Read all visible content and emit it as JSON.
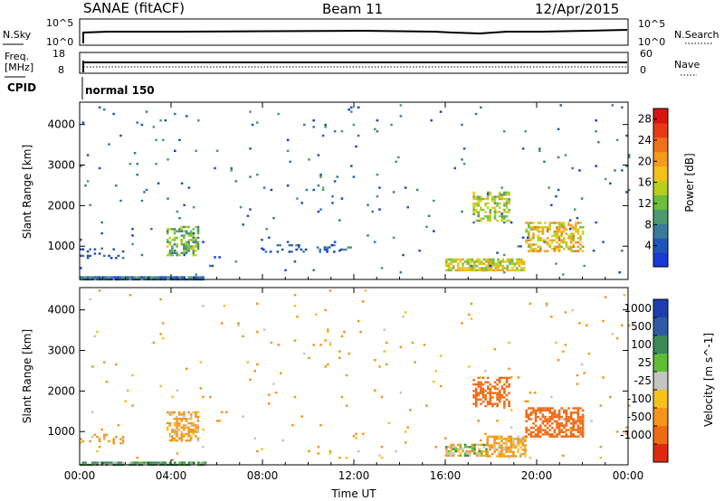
{
  "header": {
    "station": "SANAE (fitACF)",
    "beam": "Beam 11",
    "date": "12/Apr/2015"
  },
  "summary": {
    "nsky_label": "N.Sky",
    "nsearch_label": "N.Search",
    "nsky_ticks": [
      "10^5",
      "10^0"
    ],
    "nsearch_ticks": [
      "10^5",
      "10^0"
    ],
    "freq_label_1": "Freq.",
    "freq_label_2": "[MHz]",
    "freq_ticks": [
      "18",
      "8"
    ],
    "nave_label": "Nave",
    "nave_ticks": [
      "60",
      "0"
    ],
    "cpid_label": "CPID",
    "cpid_value": "normal 150"
  },
  "colors": {
    "power": [
      "#1a3ad6",
      "#1f55b8",
      "#3a7a9a",
      "#4d9a6e",
      "#6bbf3a",
      "#b9cf1a",
      "#f2c21a",
      "#f59a1a",
      "#f0701a",
      "#e83a14",
      "#d8150f"
    ],
    "velocity": [
      "#1d3fae",
      "#2f5aa5",
      "#3b8a5a",
      "#5fbe36",
      "#c4c4c0",
      "#f5c21a",
      "#f5951a",
      "#ef6a14",
      "#e02a10"
    ]
  },
  "chart_data": [
    {
      "type": "heatmap",
      "parameter": "power",
      "ylabel": "Slant Range [km]",
      "xlabel": "",
      "x_ticks": [
        "00:00",
        "04:00",
        "08:00",
        "12:00",
        "16:00",
        "20:00",
        "00:00"
      ],
      "x_hours": [
        0,
        4,
        8,
        12,
        16,
        20,
        24
      ],
      "y_ticks": [
        1000,
        2000,
        3000,
        4000
      ],
      "ylim": [
        180,
        4550
      ],
      "colorbar": {
        "label": "Power [dB]",
        "ticks": [
          4,
          8,
          12,
          16,
          20,
          24,
          28
        ],
        "range": [
          0,
          30
        ]
      },
      "patches": [
        {
          "t": [
            0.0,
            5.5
          ],
          "r": [
            180,
            260
          ],
          "value": 6,
          "density": 0.9
        },
        {
          "t": [
            3.8,
            5.2
          ],
          "r": [
            800,
            1500
          ],
          "value": 12,
          "density": 0.55
        },
        {
          "t": [
            17.2,
            18.8
          ],
          "r": [
            1650,
            2350
          ],
          "value": 14,
          "density": 0.5
        },
        {
          "t": [
            16.0,
            19.5
          ],
          "r": [
            400,
            700
          ],
          "value": 16,
          "density": 0.75
        },
        {
          "t": [
            19.5,
            22.0
          ],
          "r": [
            900,
            1600
          ],
          "value": 18,
          "density": 0.55
        },
        {
          "t": [
            0.0,
            2.0
          ],
          "r": [
            700,
            950
          ],
          "value": 5,
          "density": 0.25
        },
        {
          "t": [
            8.0,
            12.0
          ],
          "r": [
            850,
            1050
          ],
          "value": 5,
          "density": 0.2
        },
        {
          "t": [
            0.0,
            24.0
          ],
          "r": [
            300,
            4500
          ],
          "value": 6,
          "density": 0.012
        }
      ]
    },
    {
      "type": "heatmap",
      "parameter": "velocity",
      "ylabel": "Slant Range [km]",
      "xlabel": "Time UT",
      "x_ticks": [
        "00:00",
        "04:00",
        "08:00",
        "12:00",
        "16:00",
        "20:00",
        "00:00"
      ],
      "x_hours": [
        0,
        4,
        8,
        12,
        16,
        20,
        24
      ],
      "y_ticks": [
        1000,
        2000,
        3000,
        4000
      ],
      "ylim": [
        180,
        4550
      ],
      "colorbar": {
        "label": "Velocity [m s^-1]",
        "ticks": [
          1000,
          500,
          100,
          25,
          -25,
          -100,
          -500,
          -1000
        ]
      },
      "patches": [
        {
          "t": [
            0.0,
            5.5
          ],
          "r": [
            180,
            260
          ],
          "value": 100,
          "density": 0.85
        },
        {
          "t": [
            3.8,
            5.2
          ],
          "r": [
            800,
            1500
          ],
          "value": -100,
          "density": 0.55
        },
        {
          "t": [
            17.2,
            18.8
          ],
          "r": [
            1650,
            2350
          ],
          "value": -500,
          "density": 0.5
        },
        {
          "t": [
            16.0,
            17.8
          ],
          "r": [
            400,
            700
          ],
          "value": 0,
          "density": 0.7
        },
        {
          "t": [
            17.8,
            19.5
          ],
          "r": [
            400,
            900
          ],
          "value": -100,
          "density": 0.7
        },
        {
          "t": [
            19.5,
            22.0
          ],
          "r": [
            900,
            1600
          ],
          "value": -500,
          "density": 0.6
        },
        {
          "t": [
            0.0,
            2.0
          ],
          "r": [
            700,
            950
          ],
          "value": -100,
          "density": 0.25
        },
        {
          "t": [
            0.0,
            24.0
          ],
          "r": [
            300,
            4500
          ],
          "value": -100,
          "density": 0.012
        }
      ]
    }
  ]
}
